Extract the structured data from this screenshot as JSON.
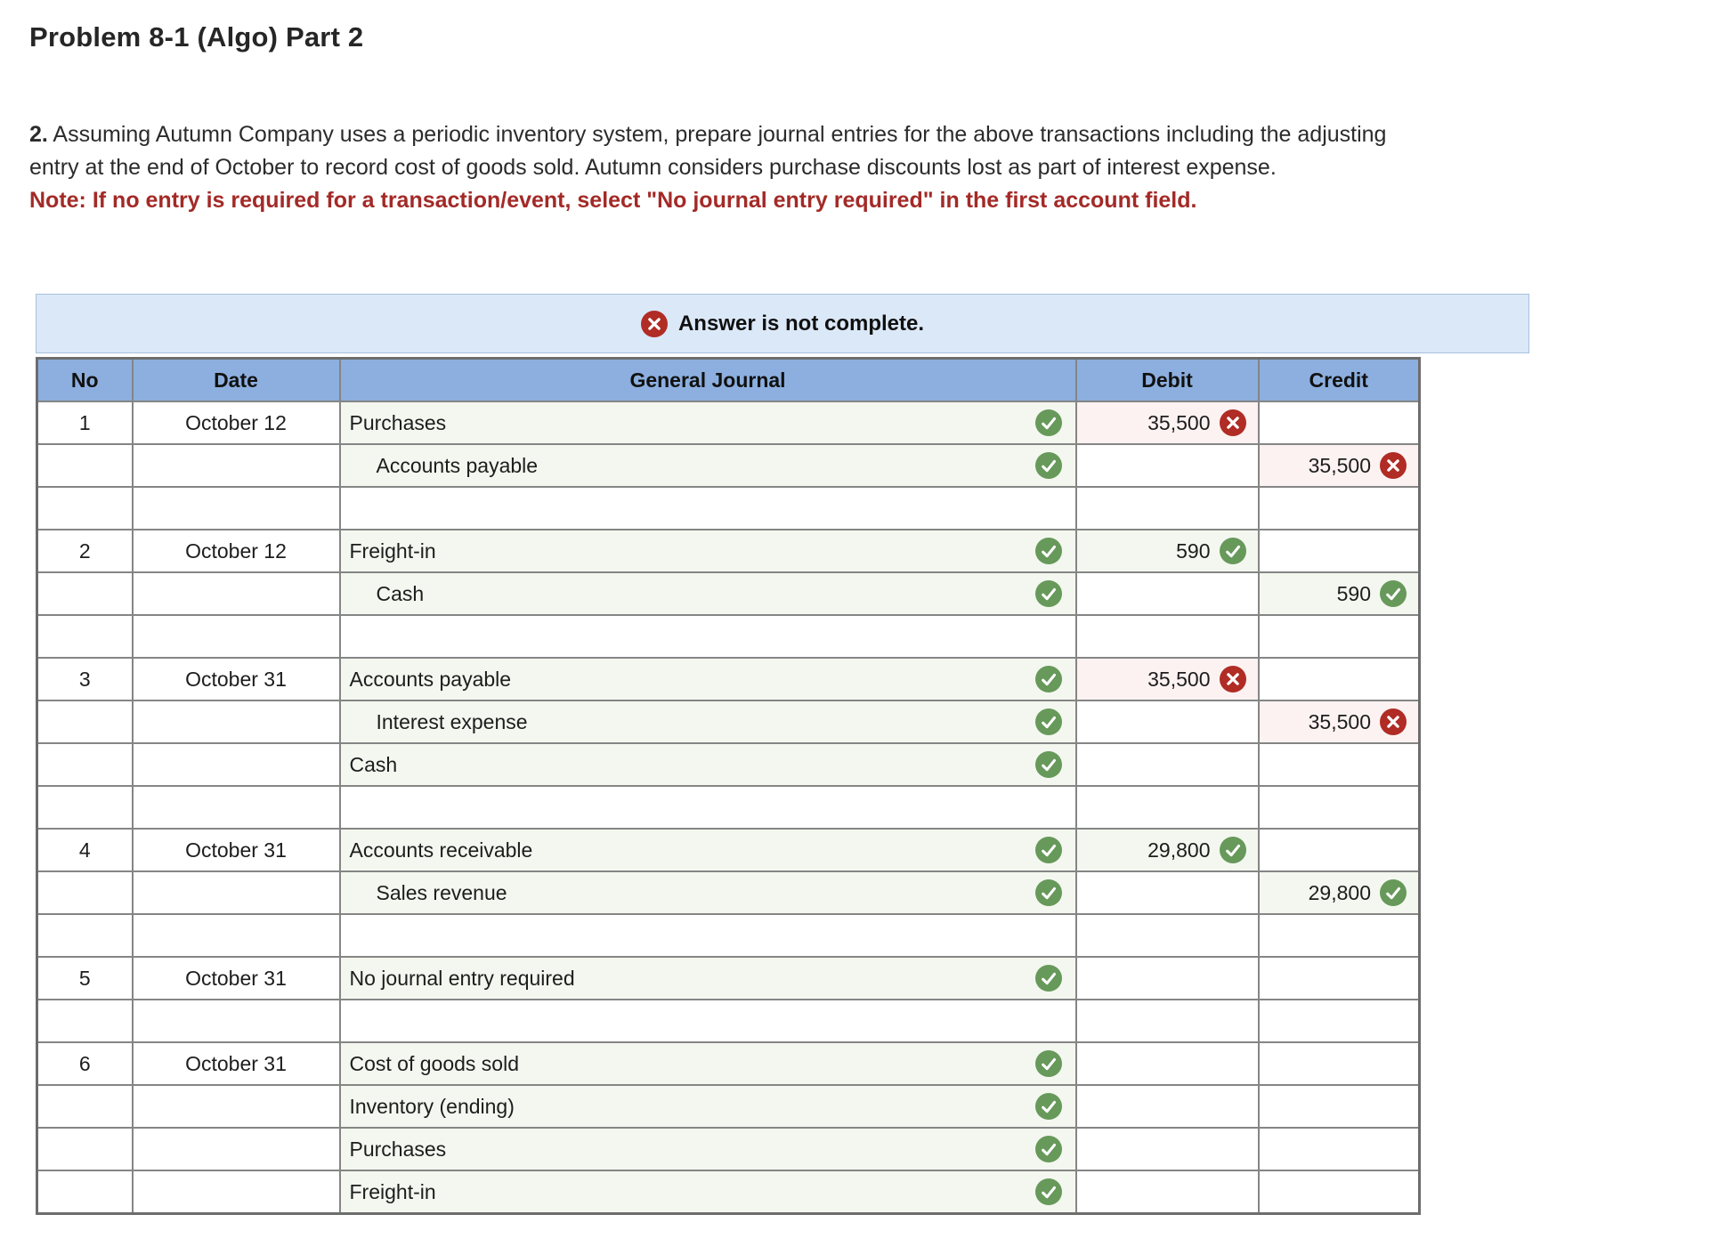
{
  "page": {
    "title": "Problem 8-1 (Algo) Part 2",
    "instructions_number": "2.",
    "instructions_text": " Assuming Autumn Company uses a periodic inventory system, prepare journal entries for the above transactions including the adjusting entry at the end of October to record cost of goods sold. Autumn considers purchase discounts lost as part of interest expense.",
    "note": "Note: If no entry is required for a transaction/event, select \"No journal entry required\" in the first account field."
  },
  "banner": {
    "icon": "x-circle-icon",
    "text": "Answer is not complete."
  },
  "table": {
    "headers": {
      "no": "No",
      "date": "Date",
      "journal": "General Journal",
      "debit": "Debit",
      "credit": "Credit"
    },
    "rows": [
      {
        "type": "entry",
        "no": "1",
        "date": "October 12",
        "account": "Purchases",
        "indent": false,
        "journal_icon": "check",
        "debit": "35,500",
        "debit_icon": "x",
        "credit": "",
        "credit_icon": ""
      },
      {
        "type": "entry",
        "no": "",
        "date": "",
        "account": "Accounts payable",
        "indent": true,
        "journal_icon": "check",
        "debit": "",
        "debit_icon": "",
        "credit": "35,500",
        "credit_icon": "x"
      },
      {
        "type": "spacer"
      },
      {
        "type": "entry",
        "no": "2",
        "date": "October 12",
        "account": "Freight-in",
        "indent": false,
        "journal_icon": "check",
        "debit": "590",
        "debit_icon": "check",
        "credit": "",
        "credit_icon": ""
      },
      {
        "type": "entry",
        "no": "",
        "date": "",
        "account": "Cash",
        "indent": true,
        "journal_icon": "check",
        "debit": "",
        "debit_icon": "",
        "credit": "590",
        "credit_icon": "check"
      },
      {
        "type": "spacer"
      },
      {
        "type": "entry",
        "no": "3",
        "date": "October 31",
        "account": "Accounts payable",
        "indent": false,
        "journal_icon": "check",
        "debit": "35,500",
        "debit_icon": "x",
        "credit": "",
        "credit_icon": ""
      },
      {
        "type": "entry",
        "no": "",
        "date": "",
        "account": "Interest expense",
        "indent": true,
        "journal_icon": "check",
        "debit": "",
        "debit_icon": "",
        "credit": "35,500",
        "credit_icon": "x"
      },
      {
        "type": "entry",
        "no": "",
        "date": "",
        "account": "Cash",
        "indent": false,
        "journal_icon": "check",
        "debit": "",
        "debit_icon": "",
        "credit": "",
        "credit_icon": ""
      },
      {
        "type": "spacer"
      },
      {
        "type": "entry",
        "no": "4",
        "date": "October 31",
        "account": "Accounts receivable",
        "indent": false,
        "journal_icon": "check",
        "debit": "29,800",
        "debit_icon": "check",
        "credit": "",
        "credit_icon": ""
      },
      {
        "type": "entry",
        "no": "",
        "date": "",
        "account": "Sales revenue",
        "indent": true,
        "journal_icon": "check",
        "debit": "",
        "debit_icon": "",
        "credit": "29,800",
        "credit_icon": "check"
      },
      {
        "type": "spacer"
      },
      {
        "type": "entry",
        "no": "5",
        "date": "October 31",
        "account": "No journal entry required",
        "indent": false,
        "journal_icon": "check",
        "debit": "",
        "debit_icon": "",
        "credit": "",
        "credit_icon": ""
      },
      {
        "type": "spacer"
      },
      {
        "type": "entry",
        "no": "6",
        "date": "October 31",
        "account": "Cost of goods sold",
        "indent": false,
        "journal_icon": "check",
        "debit": "",
        "debit_icon": "",
        "credit": "",
        "credit_icon": ""
      },
      {
        "type": "entry",
        "no": "",
        "date": "",
        "account": "Inventory (ending)",
        "indent": false,
        "journal_icon": "check",
        "debit": "",
        "debit_icon": "",
        "credit": "",
        "credit_icon": ""
      },
      {
        "type": "entry",
        "no": "",
        "date": "",
        "account": "Purchases",
        "indent": false,
        "journal_icon": "check",
        "debit": "",
        "debit_icon": "",
        "credit": "",
        "credit_icon": ""
      },
      {
        "type": "entry",
        "no": "",
        "date": "",
        "account": "Freight-in",
        "indent": false,
        "journal_icon": "check",
        "debit": "",
        "debit_icon": "",
        "credit": "",
        "credit_icon": ""
      }
    ]
  },
  "colors": {
    "header_blue": "#8cafdf",
    "banner_bg": "#dbe8f8",
    "banner_border": "#a9c2de",
    "success_green": "#67995a",
    "error_red": "#b02c25",
    "cell_green_bg": "#f3f7ef",
    "cell_pink_bg": "#fbf2f1",
    "note_red": "#a32a27",
    "grid_gray": "#858585"
  }
}
